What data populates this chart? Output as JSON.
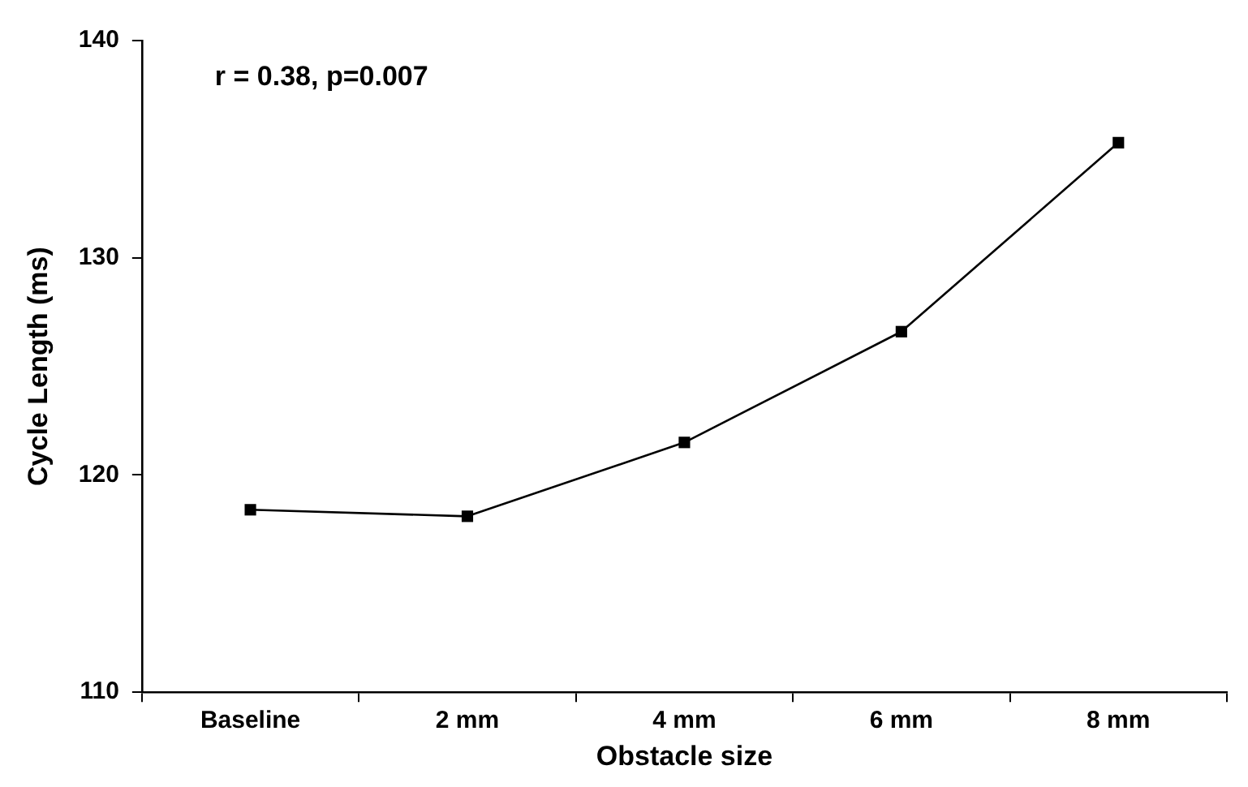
{
  "chart_data": {
    "type": "line",
    "xlabel": "Obstacle size",
    "ylabel": "Cycle Length (ms)",
    "categories": [
      "Baseline",
      "2 mm",
      "4 mm",
      "6 mm",
      "8 mm"
    ],
    "series": [
      {
        "color": "#000000",
        "values": [
          118.4,
          118.1,
          121.5,
          126.6,
          135.3
        ]
      }
    ],
    "ylim": [
      110,
      140
    ],
    "yticks": [
      110,
      120,
      130,
      140
    ],
    "grid": false,
    "legend": false,
    "marker": "square",
    "line_style": "solid",
    "annotations": [
      "r = 0.38, p=0.007"
    ]
  }
}
